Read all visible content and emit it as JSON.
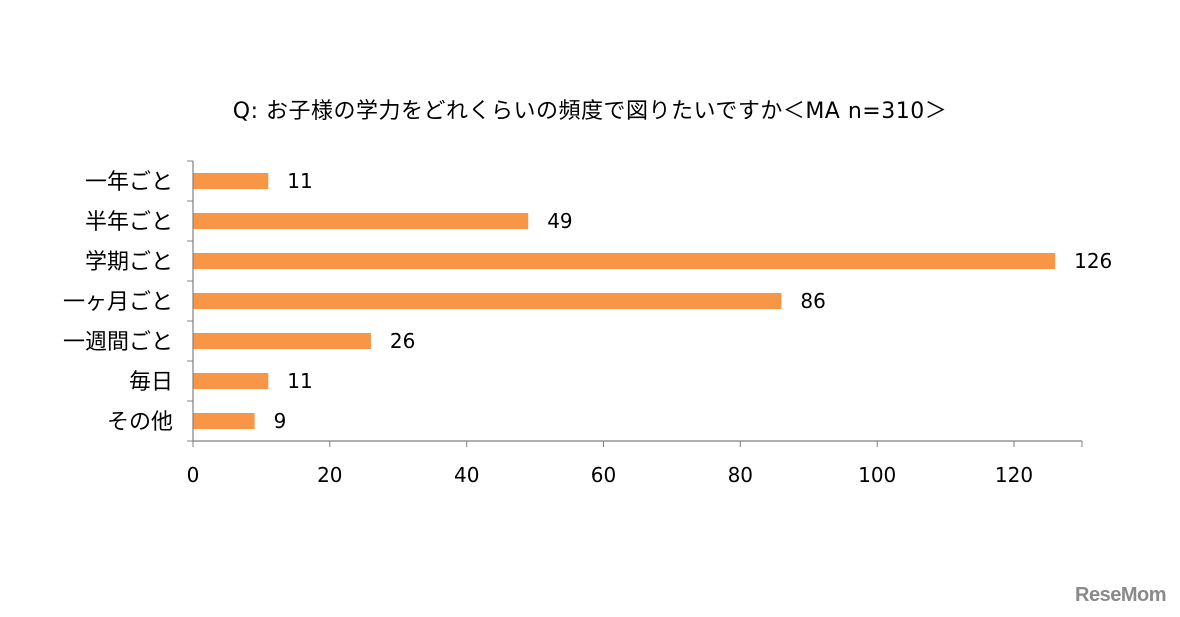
{
  "chart_data": {
    "type": "bar",
    "orientation": "horizontal",
    "title": "Q:  お子様の学力をどれくらいの頻度で図りたいですか＜MA n=310＞",
    "categories": [
      "一年ごと",
      "半年ごと",
      "学期ごと",
      "一ヶ月ごと",
      "一週間ごと",
      "毎日",
      "その他"
    ],
    "values": [
      11,
      49,
      126,
      86,
      26,
      11,
      9
    ],
    "xlim": [
      0,
      130
    ],
    "xticks": [
      0,
      20,
      40,
      60,
      80,
      100,
      120
    ],
    "grid": false,
    "legend": "none",
    "bar_color": "#F79646",
    "axis_color": "#808080"
  },
  "watermark": "ReseMom"
}
